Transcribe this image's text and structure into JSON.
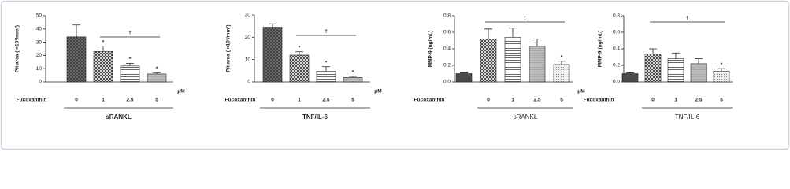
{
  "chart_data": [
    {
      "type": "bar",
      "ylabel": "Pit area ( ×10³/mm²)",
      "row_label": "Fucoxanthin",
      "unit": "μM",
      "group_label": "sRANKL",
      "categories": [
        "0",
        "1",
        "2.5",
        "5"
      ],
      "values": [
        34,
        23,
        12,
        6
      ],
      "errors": [
        9,
        4,
        2,
        1
      ],
      "bar_labels": [
        null,
        "*",
        "*",
        "*"
      ],
      "bracket": {
        "label": "†",
        "from": "1",
        "to": "5"
      },
      "ylim": [
        0,
        50
      ],
      "yticks": [
        0,
        10,
        20,
        30,
        40,
        50
      ]
    },
    {
      "type": "bar",
      "ylabel": "Pit area ( ×10³/mm²)",
      "row_label": "Fucoxanthin",
      "unit": "μM",
      "group_label": "TNF/IL-6",
      "categories": [
        "0",
        "1",
        "2.5",
        "5"
      ],
      "values": [
        24.5,
        12,
        4.8,
        2
      ],
      "errors": [
        1.5,
        1.5,
        2,
        0.5
      ],
      "bar_labels": [
        null,
        "*",
        "*",
        "*"
      ],
      "bracket": {
        "label": "†",
        "from": "1",
        "to": "5"
      },
      "ylim": [
        0,
        30
      ],
      "yticks": [
        0,
        10,
        20,
        30
      ]
    },
    {
      "type": "bar",
      "ylabel": "MMP-9 (ng/mL)",
      "row_label": "Fucoxanthin",
      "unit": "μM",
      "group_label": "sRANKL",
      "categories": [
        null,
        "0",
        "1",
        "2.5",
        "5"
      ],
      "values": [
        0.1,
        0.52,
        0.54,
        0.43,
        0.21
      ],
      "errors": [
        0.01,
        0.12,
        0.11,
        0.09,
        0.04
      ],
      "bar_labels": [
        null,
        null,
        null,
        null,
        "*"
      ],
      "bracket": {
        "label": "†",
        "from": "0",
        "to": "5"
      },
      "ylim": [
        0,
        0.8
      ],
      "yticks": [
        {
          "value": 0,
          "label": "0.0"
        },
        0.2,
        0.4,
        0.6,
        0.8
      ]
    },
    {
      "type": "bar",
      "ylabel": "MMP-9 (ng/mL)",
      "row_label": "Fucoxanthin",
      "group_label": "TNF/IL-6",
      "categories": [
        null,
        "0",
        "1",
        "2.5",
        "5"
      ],
      "values": [
        0.1,
        0.34,
        0.28,
        0.22,
        0.13
      ],
      "errors": [
        0.01,
        0.06,
        0.07,
        0.06,
        0.03
      ],
      "bar_labels": [
        null,
        null,
        null,
        null,
        "*"
      ],
      "bracket": {
        "label": "†",
        "from": "0",
        "to": "5"
      },
      "ylim": [
        0,
        0.8
      ],
      "yticks": [
        {
          "value": 0,
          "label": "0.0"
        },
        0.2,
        0.4,
        0.6,
        0.8
      ]
    }
  ]
}
